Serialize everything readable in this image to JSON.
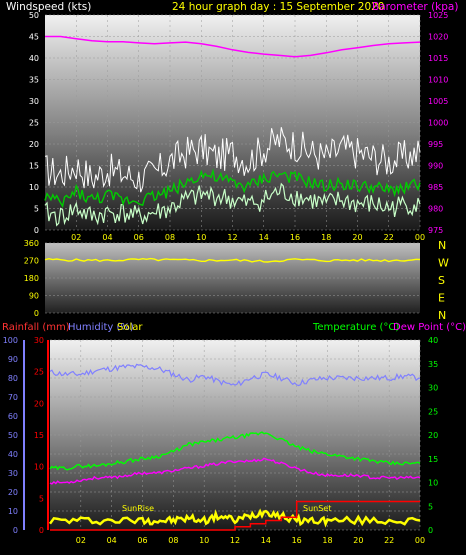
{
  "header": {
    "wind_title": "Windspeed (kts)",
    "date_title": "24 hour graph day : 15 September 2020",
    "baro_title": "Barometer (kpa)"
  },
  "lower_header": {
    "rain_title": "Rainfall (mm)",
    "hum_title": "Humidity (%)",
    "solar_title": "Solar",
    "temp_title": "Temperature (°C)",
    "dew_title": "Dew Point (°C)"
  },
  "compass": [
    "N",
    "W",
    "S",
    "E",
    "N"
  ],
  "annotations": {
    "sunrise": "SunRise",
    "sunset": "SunSet"
  },
  "colors": {
    "wind_gust": "#ffffff",
    "wind_avg_light": "#c8ffc8",
    "wind_avg": "#00cc00",
    "barometer": "#ff00ff",
    "direction": "#ffff00",
    "rainfall": "#ff0000",
    "humidity": "#8080ff",
    "solar": "#ffff00",
    "temperature": "#00ff00",
    "dewpoint": "#ff00ff",
    "x_tick": "#ffff00",
    "wind_axis": "#ffffff"
  },
  "chart_data": [
    {
      "type": "line",
      "title": "24 hour graph day : 15 September 2020",
      "xlabel": "",
      "x_ticks": [
        "02",
        "04",
        "06",
        "08",
        "10",
        "12",
        "14",
        "16",
        "18",
        "20",
        "22",
        "00"
      ],
      "xlim": [
        0,
        24
      ],
      "left_axis": {
        "label": "Windspeed (kts)",
        "ylim": [
          0,
          50
        ],
        "ticks": [
          0,
          5,
          10,
          15,
          20,
          25,
          30,
          35,
          40,
          45,
          50
        ]
      },
      "right_axis": {
        "label": "Barometer (kpa)",
        "ylim": [
          975,
          1025
        ],
        "ticks": [
          975,
          980,
          985,
          990,
          995,
          1000,
          1005,
          1010,
          1015,
          1020,
          1025
        ]
      },
      "series": [
        {
          "name": "Barometer (kpa)",
          "axis": "right",
          "x": [
            0,
            1,
            2,
            3,
            4,
            5,
            6,
            7,
            8,
            9,
            10,
            11,
            12,
            13,
            14,
            15,
            16,
            17,
            18,
            19,
            20,
            21,
            22,
            23,
            24
          ],
          "values": [
            1020,
            1020,
            1019.5,
            1019,
            1018.8,
            1018.8,
            1018.5,
            1018.3,
            1018.5,
            1018.7,
            1018.3,
            1017.7,
            1016.9,
            1016.3,
            1015.9,
            1015.6,
            1015.3,
            1015.6,
            1016.2,
            1016.9,
            1017.4,
            1017.9,
            1018.3,
            1018.5,
            1018.7
          ]
        },
        {
          "name": "Wind Gust",
          "axis": "left",
          "x": [
            0,
            1,
            2,
            3,
            4,
            5,
            6,
            7,
            8,
            9,
            10,
            11,
            12,
            13,
            14,
            15,
            16,
            17,
            18,
            19,
            20,
            21,
            22,
            23,
            24
          ],
          "values": [
            14,
            13,
            15,
            12,
            14,
            13,
            12,
            13,
            16,
            18,
            19,
            17,
            18,
            16,
            19,
            21,
            20,
            18,
            17,
            19,
            18,
            17,
            16,
            17,
            18
          ]
        },
        {
          "name": "Wind Average",
          "axis": "left",
          "x": [
            0,
            1,
            2,
            3,
            4,
            5,
            6,
            7,
            8,
            9,
            10,
            11,
            12,
            13,
            14,
            15,
            16,
            17,
            18,
            19,
            20,
            21,
            22,
            23,
            24
          ],
          "values": [
            8,
            6,
            9,
            7,
            8,
            7,
            7,
            8,
            9,
            11,
            13,
            12,
            11,
            10,
            12,
            13,
            12,
            11,
            10,
            11,
            10,
            10,
            9,
            10,
            11
          ]
        },
        {
          "name": "Wind Lull",
          "axis": "left",
          "x": [
            0,
            1,
            2,
            3,
            4,
            5,
            6,
            7,
            8,
            9,
            10,
            11,
            12,
            13,
            14,
            15,
            16,
            17,
            18,
            19,
            20,
            21,
            22,
            23,
            24
          ],
          "values": [
            4,
            3,
            5,
            3,
            4,
            4,
            3,
            4,
            5,
            7,
            8,
            8,
            7,
            6,
            7,
            9,
            8,
            7,
            6,
            7,
            6,
            6,
            5,
            6,
            6
          ]
        }
      ]
    },
    {
      "type": "line",
      "title": "",
      "xlim": [
        0,
        24
      ],
      "left_axis": {
        "label": "",
        "ylim": [
          0,
          360
        ],
        "ticks": [
          0,
          90,
          180,
          270,
          360
        ]
      },
      "right_axis": {
        "label": "",
        "tick_labels": [
          "N",
          "W",
          "S",
          "E",
          "N"
        ]
      },
      "series": [
        {
          "name": "Wind Direction",
          "axis": "left",
          "x": [
            0,
            2,
            4,
            6,
            8,
            10,
            12,
            14,
            16,
            18,
            20,
            22,
            24
          ],
          "values": [
            275,
            272,
            270,
            275,
            273,
            270,
            272,
            265,
            275,
            270,
            272,
            270,
            275
          ]
        }
      ]
    },
    {
      "type": "line",
      "title": "",
      "x_ticks": [
        "02",
        "04",
        "06",
        "08",
        "10",
        "12",
        "14",
        "16",
        "18",
        "20",
        "22",
        "00"
      ],
      "xlim": [
        0,
        24
      ],
      "humidity_axis": {
        "label": "Humidity (%)",
        "ylim": [
          0,
          100
        ],
        "ticks": [
          0,
          10,
          20,
          30,
          40,
          50,
          60,
          70,
          80,
          90,
          100
        ]
      },
      "rain_axis": {
        "label": "Rainfall (mm)",
        "ylim": [
          0,
          30
        ],
        "ticks": [
          0,
          5,
          10,
          15,
          20,
          25,
          30
        ]
      },
      "temp_axis": {
        "label": "Temperature (°C)",
        "ylim": [
          0,
          40
        ],
        "ticks": [
          0,
          5,
          10,
          15,
          20,
          25,
          30,
          35,
          40
        ]
      },
      "series": [
        {
          "name": "Humidity (%)",
          "axis": "humidity",
          "x": [
            0,
            1,
            2,
            3,
            4,
            5,
            6,
            7,
            8,
            9,
            10,
            11,
            12,
            13,
            14,
            15,
            16,
            17,
            18,
            19,
            20,
            21,
            22,
            23,
            24
          ],
          "values": [
            83,
            82,
            82,
            84,
            85,
            86,
            86,
            85,
            82,
            79,
            81,
            78,
            76,
            80,
            82,
            80,
            77,
            79,
            80,
            80,
            80,
            80,
            80,
            81,
            80
          ]
        },
        {
          "name": "Temperature (°C)",
          "axis": "temp",
          "x": [
            0,
            1,
            2,
            3,
            4,
            5,
            6,
            7,
            8,
            9,
            10,
            11,
            12,
            13,
            14,
            15,
            16,
            17,
            18,
            19,
            20,
            21,
            22,
            23,
            24
          ],
          "values": [
            13,
            13,
            13.5,
            13.5,
            14,
            14.5,
            15,
            15.5,
            16.5,
            18,
            18.5,
            19,
            19.5,
            20,
            20.5,
            19,
            17.5,
            16.5,
            16,
            15.5,
            15,
            14.5,
            14,
            14,
            14
          ]
        },
        {
          "name": "Dew Point (°C)",
          "axis": "temp",
          "x": [
            0,
            1,
            2,
            3,
            4,
            5,
            6,
            7,
            8,
            9,
            10,
            11,
            12,
            13,
            14,
            15,
            16,
            17,
            18,
            19,
            20,
            21,
            22,
            23,
            24
          ],
          "values": [
            10,
            10,
            10.5,
            11,
            11,
            11.5,
            12,
            12,
            12.5,
            13,
            13.5,
            14,
            14.5,
            14.5,
            15,
            14,
            13,
            12,
            11.5,
            11.5,
            11.5,
            11,
            11,
            11,
            11
          ]
        },
        {
          "name": "Solar",
          "axis": "temp",
          "x": [
            0,
            2,
            4,
            6,
            7,
            8,
            9,
            10,
            11,
            12,
            13,
            14,
            15,
            16,
            17,
            18,
            20,
            22,
            24
          ],
          "values": [
            2,
            2,
            2,
            2,
            2,
            2,
            2.5,
            2,
            3,
            2,
            3,
            4,
            3,
            2,
            2,
            2,
            2,
            2,
            2
          ]
        },
        {
          "name": "Rainfall (mm)",
          "axis": "rain",
          "x": [
            0,
            10,
            12,
            13,
            14,
            15,
            16,
            20,
            22,
            23,
            24
          ],
          "values": [
            0,
            0,
            0.5,
            1,
            1.5,
            2,
            4.5,
            4.5,
            4.5,
            4.5,
            4.5
          ]
        }
      ]
    }
  ]
}
